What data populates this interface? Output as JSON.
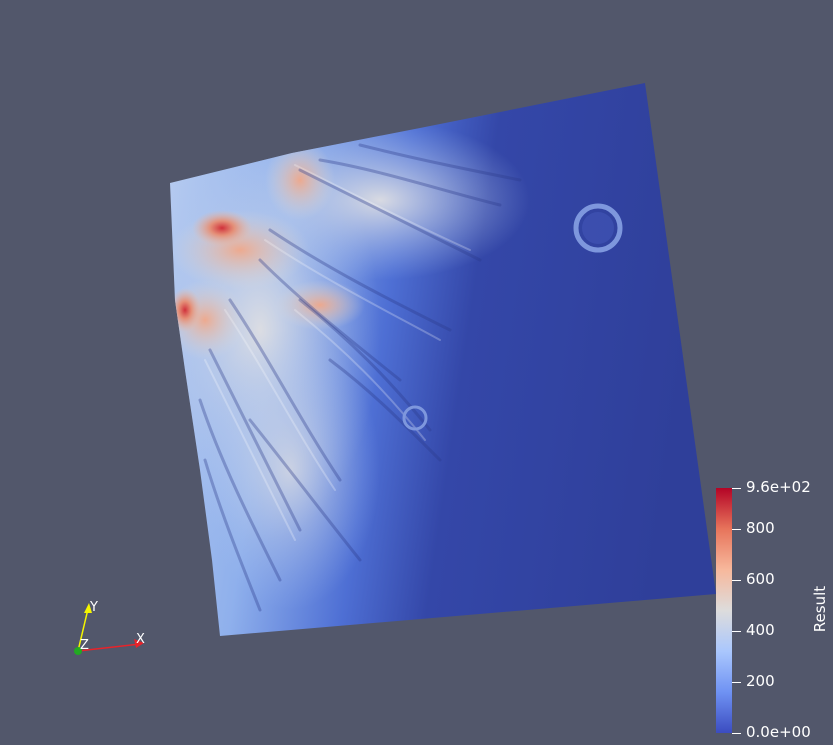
{
  "colorbar": {
    "title": "Result",
    "ticks": [
      {
        "label": "9.6e+02",
        "value": 960
      },
      {
        "label": "800",
        "value": 800
      },
      {
        "label": "600",
        "value": 600
      },
      {
        "label": "400",
        "value": 400
      },
      {
        "label": "200",
        "value": 200
      },
      {
        "label": "0.0e+00",
        "value": 0
      }
    ],
    "range": [
      0,
      960
    ],
    "colormap": [
      "#3b4cc0",
      "#6f92f3",
      "#aac7fd",
      "#dddcdc",
      "#f7b89c",
      "#e7745b",
      "#b40426"
    ]
  },
  "axes": {
    "x_label": "X",
    "y_label": "Y",
    "z_label": "Z",
    "x_color": "#e8232a",
    "y_color": "#f5f500",
    "z_color": "#22aa22"
  },
  "background_color": "#52576b"
}
